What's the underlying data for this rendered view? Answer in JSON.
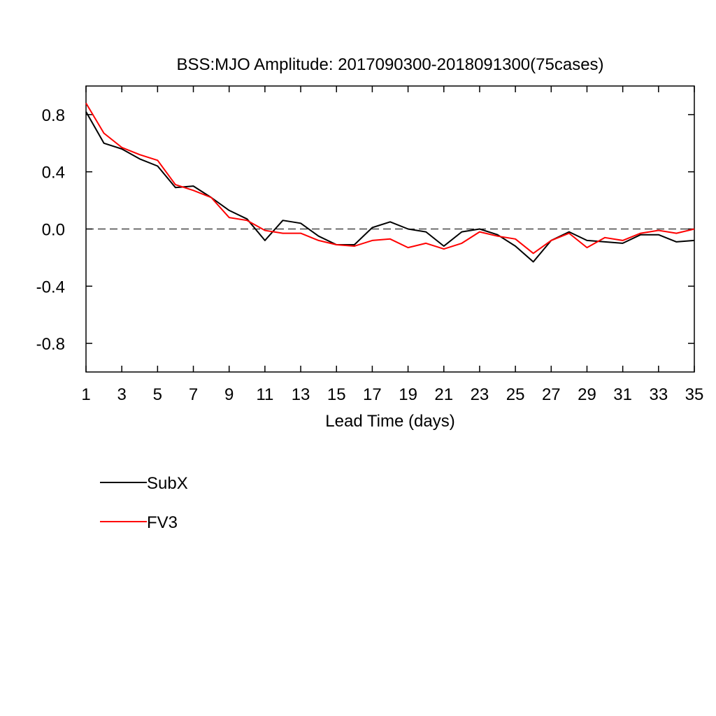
{
  "chart_data": {
    "type": "line",
    "title": "BSS:MJO Amplitude: 2017090300-2018091300(75cases)",
    "xlabel": "Lead Time (days)",
    "ylabel": "",
    "xlim": [
      1,
      35
    ],
    "ylim": [
      -1.0,
      1.0
    ],
    "xticks": [
      1,
      3,
      5,
      7,
      9,
      11,
      13,
      15,
      17,
      19,
      21,
      23,
      25,
      27,
      29,
      31,
      33,
      35
    ],
    "xtick_labels": [
      "1",
      "3",
      "5",
      "7",
      "9",
      "11",
      "13",
      "15",
      "17",
      "19",
      "21",
      "23",
      "25",
      "27",
      "29",
      "31",
      "33",
      "35"
    ],
    "yticks": [
      0.8,
      0.4,
      0.0,
      -0.4,
      -0.8
    ],
    "ytick_labels": [
      "0.8",
      "0.4",
      "0.0",
      "-0.4",
      "-0.8"
    ],
    "reference_line": {
      "y": 0.0,
      "style": "dashed"
    },
    "grid": false,
    "legend": "below-left",
    "x": [
      1,
      2,
      3,
      4,
      5,
      6,
      7,
      8,
      9,
      10,
      11,
      12,
      13,
      14,
      15,
      16,
      17,
      18,
      19,
      20,
      21,
      22,
      23,
      24,
      25,
      26,
      27,
      28,
      29,
      30,
      31,
      32,
      33,
      34,
      35
    ],
    "series": [
      {
        "name": "SubX",
        "color": "#000000",
        "values": [
          0.82,
          0.6,
          0.56,
          0.49,
          0.44,
          0.29,
          0.3,
          0.22,
          0.13,
          0.07,
          -0.08,
          0.06,
          0.04,
          -0.05,
          -0.11,
          -0.11,
          0.01,
          0.05,
          0.0,
          -0.02,
          -0.12,
          -0.02,
          0.0,
          -0.04,
          -0.12,
          -0.23,
          -0.08,
          -0.02,
          -0.08,
          -0.09,
          -0.1,
          -0.04,
          -0.04,
          -0.09,
          -0.08
        ]
      },
      {
        "name": "FV3",
        "color": "#ff0000",
        "values": [
          0.88,
          0.67,
          0.57,
          0.52,
          0.48,
          0.31,
          0.27,
          0.22,
          0.08,
          0.06,
          -0.01,
          -0.03,
          -0.03,
          -0.08,
          -0.11,
          -0.12,
          -0.08,
          -0.07,
          -0.13,
          -0.1,
          -0.14,
          -0.1,
          -0.02,
          -0.05,
          -0.07,
          -0.17,
          -0.08,
          -0.03,
          -0.13,
          -0.06,
          -0.08,
          -0.03,
          -0.01,
          -0.03,
          0.0
        ]
      }
    ]
  }
}
